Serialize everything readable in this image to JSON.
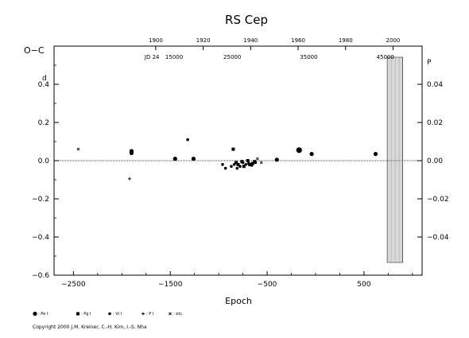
{
  "chart_data": {
    "type": "scatter",
    "title": "RS Cep",
    "ylabel_left": "O−C",
    "ylabel_left_suffix": "d",
    "ylabel_right_suffix": "P",
    "xlabel": "Epoch",
    "xlim": [
      -2700,
      1100
    ],
    "ylim": [
      -0.6,
      0.6
    ],
    "x_ticks": [
      -2500,
      -1500,
      -500,
      500
    ],
    "x_tick_labels": [
      "−2500",
      "−1500",
      "−500",
      "500"
    ],
    "y_ticks": [
      -0.6,
      -0.4,
      -0.2,
      0.0,
      0.2,
      0.4
    ],
    "y_tick_labels": [
      "−0.6",
      "−0.4",
      "−0.2",
      "0.0",
      "0.2",
      "0.4"
    ],
    "y2_ticks": [
      -0.04,
      -0.02,
      0.0,
      0.02,
      0.04
    ],
    "y2_tick_labels": [
      "−0.04",
      "−0.02",
      "0.00",
      "0.02",
      "0.04"
    ],
    "top_year_ticks": [
      1900,
      1920,
      1940,
      1960,
      1980,
      2000
    ],
    "top_jd_prefix": "JD 24",
    "top_jd_ticks": [
      "15000",
      "25000",
      "35000",
      "45000"
    ],
    "grid": false,
    "shaded_region": {
      "x_from": 740,
      "x_to": 900
    },
    "series": [
      {
        "name": ": Pe I",
        "marker": "filled-circle-large",
        "points": [
          [
            -1900,
            0.05
          ],
          [
            -1900,
            0.04
          ],
          [
            -1450,
            0.01
          ],
          [
            -1260,
            0.01
          ],
          [
            -400,
            0.005
          ],
          [
            -170,
            0.055
          ],
          [
            -40,
            0.035
          ],
          [
            620,
            0.035
          ]
        ]
      },
      {
        "name": ": Pg I",
        "marker": "filled-square",
        "points": [
          [
            -850,
            0.06
          ],
          [
            -820,
            -0.01
          ],
          [
            -800,
            -0.02
          ],
          [
            -760,
            -0.005
          ],
          [
            -740,
            -0.03
          ],
          [
            -700,
            0.0
          ],
          [
            -680,
            -0.02
          ],
          [
            -650,
            -0.015
          ],
          [
            -630,
            -0.005
          ]
        ]
      },
      {
        "name": ": Vi I",
        "marker": "filled-circle",
        "points": [
          [
            -1320,
            0.11
          ],
          [
            -960,
            -0.02
          ],
          [
            -930,
            -0.04
          ],
          [
            -870,
            -0.03
          ],
          [
            -840,
            -0.02
          ],
          [
            -810,
            -0.04
          ],
          [
            -780,
            -0.03
          ],
          [
            -750,
            -0.01
          ],
          [
            -720,
            -0.02
          ],
          [
            -690,
            -0.015
          ],
          [
            -660,
            -0.025
          ],
          [
            -620,
            -0.01
          ]
        ]
      },
      {
        "name": ": P I",
        "marker": "plus",
        "points": [
          [
            -1920,
            -0.095
          ]
        ]
      },
      {
        "name": ": etc.",
        "marker": "cross",
        "points": [
          [
            -2450,
            0.06
          ],
          [
            -600,
            0.01
          ],
          [
            -560,
            -0.01
          ]
        ]
      }
    ]
  },
  "copyright": "Copyright 2000 J.M. Kreiner, C.-H. Kim, I.-S. Nha"
}
